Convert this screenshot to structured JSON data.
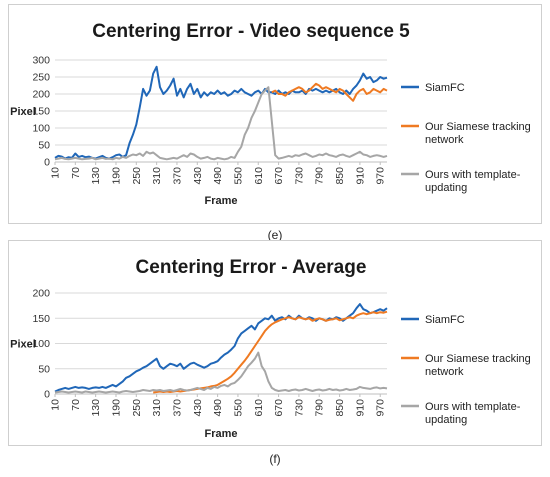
{
  "chart_data": [
    {
      "type": "line",
      "title": "Centering Error - Video sequence 5",
      "xlabel": "Frame",
      "ylabel": "Pixel",
      "ylim": [
        0,
        300
      ],
      "yticks": [
        0,
        50,
        100,
        150,
        200,
        250,
        300
      ],
      "xlim": [
        10,
        990
      ],
      "xticks": [
        10,
        70,
        130,
        190,
        250,
        310,
        370,
        430,
        490,
        550,
        610,
        670,
        730,
        790,
        850,
        910,
        970
      ],
      "grid": true,
      "legend_position": "right",
      "series": [
        {
          "name": "SiamFC",
          "color": "#2067b8",
          "x": [
            10,
            20,
            30,
            40,
            50,
            60,
            70,
            80,
            90,
            100,
            110,
            120,
            130,
            140,
            150,
            160,
            170,
            180,
            190,
            200,
            210,
            220,
            230,
            240,
            250,
            260,
            270,
            280,
            290,
            300,
            310,
            320,
            330,
            340,
            350,
            360,
            370,
            380,
            390,
            400,
            410,
            420,
            430,
            440,
            450,
            460,
            470,
            480,
            490,
            500,
            510,
            520,
            530,
            540,
            550,
            560,
            570,
            580,
            590,
            600,
            610,
            620,
            630,
            640,
            650,
            660,
            670,
            680,
            690,
            700,
            710,
            720,
            730,
            740,
            750,
            760,
            770,
            780,
            790,
            800,
            810,
            820,
            830,
            840,
            850,
            860,
            870,
            880,
            890,
            900,
            910,
            920,
            930,
            940,
            950,
            960,
            970,
            980,
            990
          ],
          "y": [
            12,
            18,
            16,
            10,
            14,
            12,
            25,
            15,
            18,
            14,
            16,
            12,
            10,
            14,
            18,
            12,
            10,
            14,
            20,
            22,
            15,
            20,
            55,
            80,
            110,
            160,
            215,
            195,
            210,
            260,
            280,
            220,
            200,
            210,
            225,
            245,
            195,
            215,
            190,
            215,
            230,
            200,
            215,
            190,
            205,
            195,
            205,
            200,
            210,
            200,
            205,
            195,
            200,
            210,
            205,
            215,
            205,
            200,
            195,
            205,
            210,
            200,
            215,
            205,
            205,
            200,
            210,
            200,
            205,
            200,
            210,
            205,
            205,
            210,
            200,
            215,
            210,
            215,
            210,
            205,
            210,
            205,
            210,
            215,
            205,
            200,
            210,
            200,
            215,
            225,
            240,
            260,
            245,
            250,
            235,
            240,
            250,
            245,
            248
          ]
        },
        {
          "name": "Our Siamese tracking network",
          "color": "#ef7a22",
          "x": [
            650,
            660,
            670,
            680,
            690,
            700,
            710,
            720,
            730,
            740,
            750,
            760,
            770,
            780,
            790,
            800,
            810,
            820,
            830,
            840,
            850,
            860,
            870,
            880,
            890,
            900,
            910,
            920,
            930,
            940,
            950,
            960,
            970,
            980,
            990
          ],
          "y": [
            205,
            210,
            200,
            200,
            195,
            205,
            210,
            215,
            220,
            215,
            205,
            210,
            220,
            230,
            225,
            215,
            220,
            215,
            210,
            205,
            215,
            210,
            200,
            190,
            180,
            200,
            210,
            215,
            200,
            205,
            215,
            210,
            205,
            215,
            210
          ]
        },
        {
          "name": "Ours with template-updating",
          "color": "#a6a6a6",
          "x": [
            10,
            20,
            30,
            40,
            50,
            60,
            70,
            80,
            90,
            100,
            110,
            120,
            130,
            140,
            150,
            160,
            170,
            180,
            190,
            200,
            210,
            220,
            230,
            240,
            250,
            260,
            270,
            280,
            290,
            300,
            310,
            320,
            330,
            340,
            350,
            360,
            370,
            380,
            390,
            400,
            410,
            420,
            430,
            440,
            450,
            460,
            470,
            480,
            490,
            500,
            510,
            520,
            530,
            540,
            550,
            560,
            570,
            580,
            590,
            600,
            610,
            620,
            630,
            640,
            650,
            660,
            670,
            680,
            690,
            700,
            710,
            720,
            730,
            740,
            750,
            760,
            770,
            780,
            790,
            800,
            810,
            820,
            830,
            840,
            850,
            860,
            870,
            880,
            890,
            900,
            910,
            920,
            930,
            940,
            950,
            960,
            970,
            980,
            990
          ],
          "y": [
            8,
            10,
            12,
            9,
            8,
            10,
            12,
            10,
            8,
            9,
            10,
            12,
            8,
            10,
            12,
            9,
            10,
            8,
            12,
            10,
            15,
            12,
            18,
            22,
            20,
            25,
            18,
            30,
            25,
            28,
            20,
            12,
            10,
            8,
            10,
            12,
            10,
            15,
            20,
            15,
            25,
            22,
            15,
            10,
            12,
            15,
            10,
            8,
            12,
            10,
            8,
            10,
            15,
            12,
            30,
            45,
            80,
            100,
            130,
            150,
            175,
            200,
            210,
            220,
            120,
            20,
            10,
            12,
            15,
            18,
            15,
            20,
            18,
            22,
            25,
            20,
            15,
            18,
            22,
            20,
            25,
            20,
            18,
            15,
            20,
            22,
            18,
            15,
            20,
            25,
            30,
            22,
            20,
            15,
            18,
            20,
            18,
            15,
            18
          ]
        }
      ]
    },
    {
      "type": "line",
      "title": "Centering Error - Average",
      "xlabel": "Frame",
      "ylabel": "Pixel",
      "ylim": [
        0,
        200
      ],
      "yticks": [
        0,
        50,
        100,
        150,
        200
      ],
      "xlim": [
        10,
        990
      ],
      "xticks": [
        10,
        70,
        130,
        190,
        250,
        310,
        370,
        430,
        490,
        550,
        610,
        670,
        730,
        790,
        850,
        910,
        970
      ],
      "grid": true,
      "legend_position": "right",
      "series": [
        {
          "name": "SiamFC",
          "color": "#2067b8",
          "x": [
            10,
            20,
            30,
            40,
            50,
            60,
            70,
            80,
            90,
            100,
            110,
            120,
            130,
            140,
            150,
            160,
            170,
            180,
            190,
            200,
            210,
            220,
            230,
            240,
            250,
            260,
            270,
            280,
            290,
            300,
            310,
            320,
            330,
            340,
            350,
            360,
            370,
            380,
            390,
            400,
            410,
            420,
            430,
            440,
            450,
            460,
            470,
            480,
            490,
            500,
            510,
            520,
            530,
            540,
            550,
            560,
            570,
            580,
            590,
            600,
            610,
            620,
            630,
            640,
            650,
            660,
            670,
            680,
            690,
            700,
            710,
            720,
            730,
            740,
            750,
            760,
            770,
            780,
            790,
            800,
            810,
            820,
            830,
            840,
            850,
            860,
            870,
            880,
            890,
            900,
            910,
            920,
            930,
            940,
            950,
            960,
            970,
            980,
            990
          ],
          "y": [
            5,
            8,
            10,
            12,
            10,
            12,
            14,
            12,
            13,
            12,
            10,
            12,
            13,
            12,
            14,
            12,
            15,
            18,
            15,
            20,
            25,
            32,
            35,
            40,
            45,
            48,
            52,
            55,
            60,
            65,
            70,
            55,
            50,
            55,
            60,
            58,
            55,
            60,
            50,
            55,
            60,
            62,
            58,
            55,
            52,
            55,
            60,
            62,
            65,
            72,
            78,
            82,
            88,
            95,
            110,
            120,
            125,
            130,
            135,
            128,
            140,
            145,
            150,
            148,
            155,
            145,
            150,
            152,
            148,
            155,
            150,
            148,
            155,
            150,
            148,
            152,
            150,
            145,
            150,
            148,
            145,
            150,
            148,
            152,
            150,
            145,
            150,
            155,
            160,
            170,
            178,
            168,
            165,
            160,
            162,
            165,
            168,
            165,
            170
          ]
        },
        {
          "name": "Our Siamese tracking network",
          "color": "#ef7a22",
          "x": [
            300,
            310,
            320,
            330,
            340,
            350,
            360,
            370,
            380,
            390,
            400,
            410,
            420,
            430,
            440,
            450,
            460,
            470,
            480,
            490,
            500,
            510,
            520,
            530,
            540,
            550,
            560,
            570,
            580,
            590,
            600,
            610,
            620,
            630,
            640,
            650,
            660,
            670,
            680,
            690,
            700,
            710,
            720,
            730,
            740,
            750,
            760,
            770,
            780,
            790,
            800,
            810,
            820,
            830,
            840,
            850,
            860,
            870,
            880,
            890,
            900,
            910,
            920,
            930,
            940,
            950,
            960,
            970,
            980,
            990
          ],
          "y": [
            3,
            4,
            5,
            4,
            5,
            4,
            5,
            6,
            5,
            6,
            7,
            8,
            9,
            10,
            11,
            12,
            13,
            15,
            16,
            18,
            22,
            26,
            30,
            35,
            42,
            50,
            58,
            66,
            75,
            85,
            95,
            105,
            115,
            125,
            132,
            138,
            142,
            145,
            148,
            150,
            152,
            150,
            148,
            152,
            150,
            148,
            150,
            145,
            148,
            150,
            148,
            145,
            147,
            148,
            150,
            146,
            148,
            150,
            152,
            150,
            155,
            158,
            160,
            158,
            160,
            162,
            160,
            162,
            161,
            163
          ]
        },
        {
          "name": "Ours with template-updating",
          "color": "#a6a6a6",
          "x": [
            10,
            20,
            30,
            40,
            50,
            60,
            70,
            80,
            90,
            100,
            110,
            120,
            130,
            140,
            150,
            160,
            170,
            180,
            190,
            200,
            210,
            220,
            230,
            240,
            250,
            260,
            270,
            280,
            290,
            300,
            310,
            320,
            330,
            340,
            350,
            360,
            370,
            380,
            390,
            400,
            410,
            420,
            430,
            440,
            450,
            460,
            470,
            480,
            490,
            500,
            510,
            520,
            530,
            540,
            550,
            560,
            570,
            580,
            590,
            600,
            610,
            620,
            630,
            640,
            650,
            660,
            670,
            680,
            690,
            700,
            710,
            720,
            730,
            740,
            750,
            760,
            770,
            780,
            790,
            800,
            810,
            820,
            830,
            840,
            850,
            860,
            870,
            880,
            890,
            900,
            910,
            920,
            930,
            940,
            950,
            960,
            970,
            980,
            990
          ],
          "y": [
            3,
            4,
            5,
            4,
            3,
            4,
            5,
            4,
            3,
            5,
            4,
            3,
            4,
            5,
            4,
            3,
            4,
            5,
            4,
            3,
            5,
            6,
            5,
            4,
            5,
            6,
            8,
            7,
            6,
            8,
            7,
            8,
            6,
            7,
            8,
            6,
            8,
            10,
            8,
            7,
            8,
            10,
            12,
            10,
            8,
            12,
            10,
            14,
            12,
            16,
            18,
            15,
            20,
            22,
            28,
            35,
            45,
            55,
            62,
            70,
            82,
            55,
            45,
            25,
            12,
            8,
            6,
            7,
            8,
            6,
            8,
            9,
            7,
            8,
            10,
            8,
            6,
            8,
            9,
            7,
            8,
            10,
            8,
            9,
            7,
            8,
            10,
            8,
            9,
            10,
            14,
            12,
            11,
            10,
            12,
            13,
            11,
            12,
            11
          ]
        }
      ]
    }
  ],
  "captions": [
    "(e)",
    "(f)"
  ]
}
